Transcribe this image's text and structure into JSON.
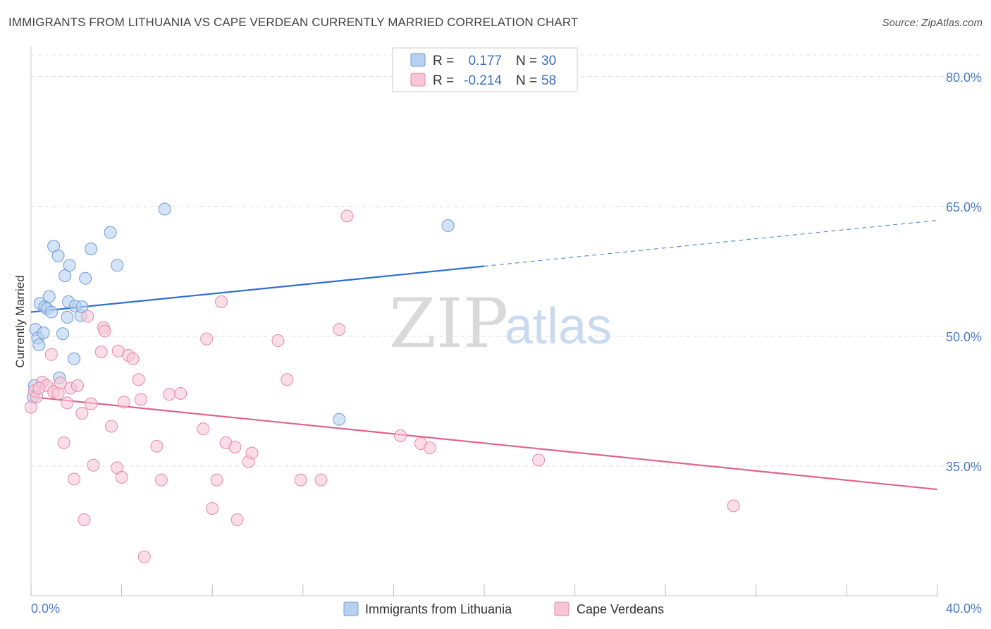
{
  "header": {
    "title": "IMMIGRANTS FROM LITHUANIA VS CAPE VERDEAN CURRENTLY MARRIED CORRELATION CHART",
    "source": "Source: ZipAtlas.com"
  },
  "watermark": {
    "zip": "ZIP",
    "atlas": "atlas"
  },
  "legend": {
    "rows": [
      {
        "r_label": "R =",
        "r_value": "0.177",
        "n_label": "N =",
        "n_value": "30"
      },
      {
        "r_label": "R =",
        "r_value": "-0.214",
        "n_label": "N =",
        "n_value": "58"
      }
    ]
  },
  "chart_data": {
    "type": "scatter",
    "title": "IMMIGRANTS FROM LITHUANIA VS CAPE VERDEAN CURRENTLY MARRIED CORRELATION CHART",
    "xlabel": "",
    "ylabel": "Currently Married",
    "xlim": [
      0,
      40
    ],
    "ylim": [
      20,
      83
    ],
    "x_tick_labels": [
      "0.0%",
      "40.0%"
    ],
    "y_ticks": [
      35,
      50,
      65,
      80
    ],
    "y_tick_labels": [
      "35.0%",
      "50.0%",
      "65.0%",
      "80.0%"
    ],
    "grid": true,
    "legend_position": "top-center",
    "series": [
      {
        "name": "Immigrants from Lithuania",
        "color": "#6c9bd8",
        "fill": "#b8d0f0",
        "r": 0.177,
        "n": 30,
        "trend": {
          "x0": 0,
          "y0": 52.8,
          "x1": 20,
          "y1": 58.1,
          "dashed_to_x": 40,
          "dashed_to_y": 63.4
        },
        "points": [
          [
            0.1,
            43.0
          ],
          [
            0.2,
            50.8
          ],
          [
            0.3,
            49.8
          ],
          [
            0.35,
            49.0
          ],
          [
            0.4,
            53.8
          ],
          [
            0.55,
            50.4
          ],
          [
            0.6,
            53.4
          ],
          [
            0.7,
            53.2
          ],
          [
            0.8,
            54.6
          ],
          [
            0.9,
            52.8
          ],
          [
            1.0,
            60.4
          ],
          [
            1.2,
            59.3
          ],
          [
            1.25,
            45.2
          ],
          [
            1.4,
            50.3
          ],
          [
            1.5,
            57.0
          ],
          [
            1.6,
            52.2
          ],
          [
            1.65,
            54.0
          ],
          [
            1.7,
            58.2
          ],
          [
            1.9,
            47.4
          ],
          [
            1.95,
            53.5
          ],
          [
            2.2,
            52.4
          ],
          [
            2.25,
            53.4
          ],
          [
            2.4,
            56.7
          ],
          [
            2.65,
            60.1
          ],
          [
            3.5,
            62.0
          ],
          [
            3.8,
            58.2
          ],
          [
            5.9,
            64.7
          ],
          [
            13.6,
            40.4
          ],
          [
            18.4,
            62.8
          ],
          [
            0.15,
            44.3
          ]
        ]
      },
      {
        "name": "Cape Verdeans",
        "color": "#e58aaa",
        "fill": "#f7c6d6",
        "r": -0.214,
        "n": 58,
        "trend": {
          "x0": 0,
          "y0": 43.0,
          "x1": 40,
          "y1": 32.3
        },
        "points": [
          [
            0.0,
            41.8
          ],
          [
            0.15,
            43.7
          ],
          [
            0.25,
            43.0
          ],
          [
            0.5,
            44.7
          ],
          [
            0.7,
            44.3
          ],
          [
            0.9,
            47.9
          ],
          [
            1.0,
            43.6
          ],
          [
            1.2,
            43.4
          ],
          [
            1.3,
            44.6
          ],
          [
            1.45,
            37.7
          ],
          [
            1.6,
            42.3
          ],
          [
            1.75,
            44.0
          ],
          [
            1.9,
            33.5
          ],
          [
            2.05,
            44.3
          ],
          [
            2.25,
            41.1
          ],
          [
            2.35,
            28.8
          ],
          [
            2.5,
            52.3
          ],
          [
            2.65,
            42.2
          ],
          [
            2.75,
            35.1
          ],
          [
            3.1,
            48.2
          ],
          [
            3.2,
            51.0
          ],
          [
            3.25,
            50.6
          ],
          [
            3.55,
            39.6
          ],
          [
            3.8,
            34.8
          ],
          [
            3.85,
            48.3
          ],
          [
            4.0,
            33.7
          ],
          [
            4.1,
            42.4
          ],
          [
            4.3,
            47.8
          ],
          [
            4.5,
            47.4
          ],
          [
            4.75,
            45.0
          ],
          [
            4.85,
            42.7
          ],
          [
            5.0,
            24.5
          ],
          [
            5.55,
            37.3
          ],
          [
            5.75,
            33.4
          ],
          [
            6.1,
            43.3
          ],
          [
            6.6,
            43.4
          ],
          [
            7.6,
            39.3
          ],
          [
            7.75,
            49.7
          ],
          [
            8.0,
            30.1
          ],
          [
            8.2,
            33.4
          ],
          [
            8.4,
            54.0
          ],
          [
            8.6,
            37.7
          ],
          [
            9.0,
            37.2
          ],
          [
            9.1,
            28.8
          ],
          [
            9.6,
            35.5
          ],
          [
            9.75,
            36.5
          ],
          [
            10.9,
            49.5
          ],
          [
            11.3,
            45.0
          ],
          [
            11.9,
            33.4
          ],
          [
            12.8,
            33.4
          ],
          [
            13.6,
            50.8
          ],
          [
            13.95,
            63.9
          ],
          [
            16.3,
            38.5
          ],
          [
            17.2,
            37.6
          ],
          [
            17.6,
            37.1
          ],
          [
            22.4,
            35.7
          ],
          [
            31.0,
            30.4
          ],
          [
            0.35,
            44.0
          ]
        ]
      }
    ]
  }
}
